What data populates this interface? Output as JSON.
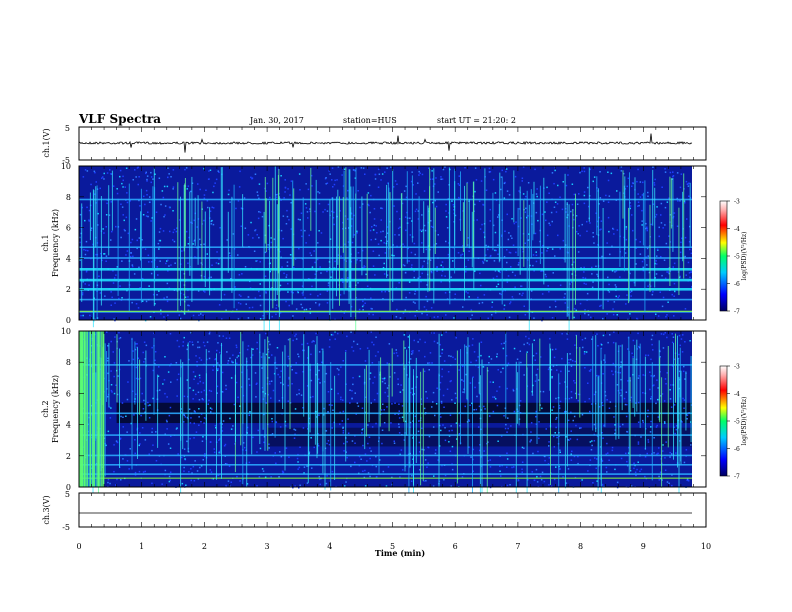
{
  "header": {
    "title": "VLF Spectra",
    "date": "Jan. 30, 2017",
    "station": "station=HUS",
    "start": "start UT = 21:20: 2"
  },
  "chart_data": [
    {
      "type": "line",
      "panel": "ch1-waveform",
      "ylabel": "ch.1(V)",
      "ylim": [
        -5,
        5
      ],
      "yticks": [
        "5",
        "-5"
      ],
      "xlim": [
        0,
        10
      ],
      "series": [
        {
          "values_summary": "near-constant around 0 V with small spikes"
        }
      ]
    },
    {
      "type": "heatmap",
      "panel": "ch1-spectrogram",
      "ylabel": "ch.1\nFrequency (kHz)",
      "ylim": [
        0,
        10
      ],
      "yticks": [
        "0",
        "2",
        "4",
        "6",
        "8",
        "10"
      ],
      "xlim": [
        0,
        10
      ],
      "colorbar": {
        "label": "log(PSD)(V²/Hz)",
        "ticks": [
          "-3",
          "-4",
          "-5",
          "-6",
          "-7"
        ],
        "range": [
          -7,
          -3
        ],
        "colors": [
          "#00007f",
          "#0000ff",
          "#00ffff",
          "#00ff00",
          "#ffff00",
          "#ff0000",
          "#ffffff"
        ]
      },
      "bands_khz": [
        0.5,
        1.3,
        2.0,
        2.6,
        3.3,
        4.0,
        4.7,
        7.8
      ],
      "strong_bands_khz": [
        2.0,
        2.6,
        3.3
      ]
    },
    {
      "type": "heatmap",
      "panel": "ch2-spectrogram",
      "ylabel": "ch.2\nFrequency (kHz)",
      "ylim": [
        0,
        10
      ],
      "yticks": [
        "0",
        "2",
        "4",
        "6",
        "8",
        "10"
      ],
      "xlim": [
        0,
        10
      ],
      "colorbar": {
        "label": "log(PSD)(V²/Hz)",
        "ticks": [
          "-3",
          "-4",
          "-5",
          "-6",
          "-7"
        ],
        "range": [
          -7,
          -3
        ],
        "colors": [
          "#00007f",
          "#0000ff",
          "#00ffff",
          "#00ff00",
          "#ffff00",
          "#ff0000",
          "#ffffff"
        ]
      },
      "bands_khz": [
        0.8,
        1.4,
        2.0,
        3.3,
        4.7,
        7.8
      ]
    },
    {
      "type": "line",
      "panel": "ch3-waveform",
      "ylabel": "ch.3(V)",
      "ylim": [
        -5,
        5
      ],
      "yticks": [
        "5",
        "-5"
      ],
      "xlim": [
        0,
        10
      ],
      "xlabel": "Time (min)",
      "xticks": [
        "0",
        "1",
        "2",
        "3",
        "4",
        "5",
        "6",
        "7",
        "8",
        "9",
        "10"
      ],
      "series": [
        {
          "values_summary": "flat line near -1 V"
        }
      ]
    }
  ]
}
